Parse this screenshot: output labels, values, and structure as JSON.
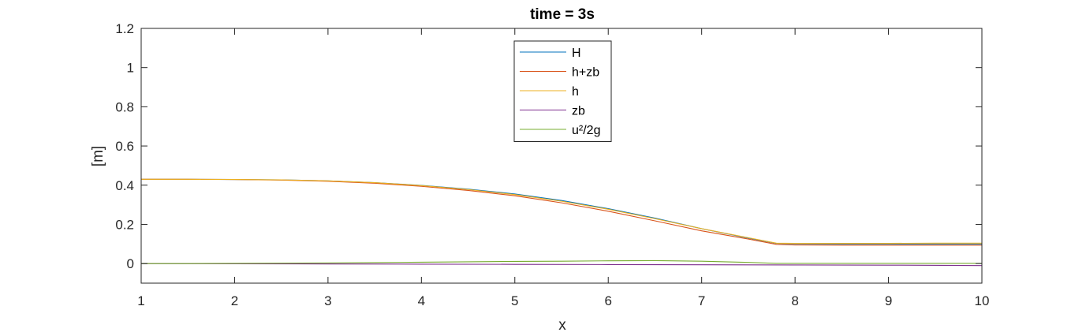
{
  "chart_data": {
    "type": "line",
    "title": "time = 3s",
    "xlabel": "x",
    "ylabel": "[m]",
    "xlim": [
      1,
      10
    ],
    "ylim": [
      -0.1,
      1.2
    ],
    "xticks": [
      1,
      2,
      3,
      4,
      5,
      6,
      7,
      8,
      9,
      10
    ],
    "yticks": [
      0,
      0.2,
      0.4,
      0.6,
      0.8,
      1,
      1.2
    ],
    "ytick_labels": [
      "0",
      "0.2",
      "0.4",
      "0.6",
      "0.8",
      "1",
      "1.2"
    ],
    "xtick_labels": [
      "1",
      "2",
      "3",
      "4",
      "5",
      "6",
      "7",
      "8",
      "9",
      "10"
    ],
    "grid": false,
    "legend_position": "top-center",
    "series": [
      {
        "name": "H",
        "color": "#0072BD",
        "x": [
          1,
          1.5,
          2,
          2.5,
          3,
          3.5,
          4,
          4.5,
          5,
          5.5,
          6,
          6.5,
          7,
          7.5,
          7.8,
          8,
          8.5,
          9,
          9.5,
          10
        ],
        "y": [
          0.43,
          0.43,
          0.429,
          0.427,
          0.422,
          0.413,
          0.399,
          0.38,
          0.355,
          0.322,
          0.28,
          0.232,
          0.178,
          0.13,
          0.103,
          0.101,
          0.1,
          0.1,
          0.1,
          0.1
        ]
      },
      {
        "name": "h+zb",
        "color": "#D95319",
        "x": [
          1,
          1.5,
          2,
          2.5,
          3,
          3.5,
          4,
          4.5,
          5,
          5.5,
          6,
          6.5,
          7,
          7.5,
          7.8,
          8,
          8.5,
          9,
          9.5,
          10
        ],
        "y": [
          0.43,
          0.43,
          0.429,
          0.426,
          0.42,
          0.41,
          0.394,
          0.373,
          0.346,
          0.31,
          0.267,
          0.218,
          0.167,
          0.125,
          0.098,
          0.095,
          0.094,
          0.094,
          0.094,
          0.094
        ]
      },
      {
        "name": "h",
        "color": "#EDB120",
        "x": [
          1,
          1.5,
          2,
          2.5,
          3,
          3.5,
          4,
          4.5,
          5,
          5.5,
          6,
          6.5,
          7,
          7.5,
          7.8,
          8,
          8.5,
          9,
          9.5,
          10
        ],
        "y": [
          0.43,
          0.43,
          0.429,
          0.427,
          0.422,
          0.413,
          0.398,
          0.378,
          0.352,
          0.318,
          0.277,
          0.229,
          0.178,
          0.132,
          0.104,
          0.103,
          0.103,
          0.103,
          0.104,
          0.104
        ]
      },
      {
        "name": "zb",
        "color": "#7E2F8E",
        "x": [
          1,
          2,
          3,
          4,
          5,
          6,
          7,
          8,
          9,
          10
        ],
        "y": [
          0,
          -0.001,
          -0.002,
          -0.003,
          -0.004,
          -0.005,
          -0.006,
          -0.007,
          -0.008,
          -0.01
        ]
      },
      {
        "name": "u²/2g",
        "color": "#77AC30",
        "x": [
          1,
          1.5,
          2,
          2.5,
          3,
          3.5,
          4,
          4.5,
          5,
          5.5,
          6,
          6.5,
          7,
          7.5,
          7.8,
          8,
          8.5,
          9,
          9.5,
          10
        ],
        "y": [
          0,
          0,
          0.001,
          0.002,
          0.003,
          0.005,
          0.007,
          0.009,
          0.011,
          0.012,
          0.014,
          0.015,
          0.012,
          0.006,
          0.001,
          0.001,
          0.001,
          0.001,
          0.001,
          0.001
        ]
      }
    ]
  }
}
